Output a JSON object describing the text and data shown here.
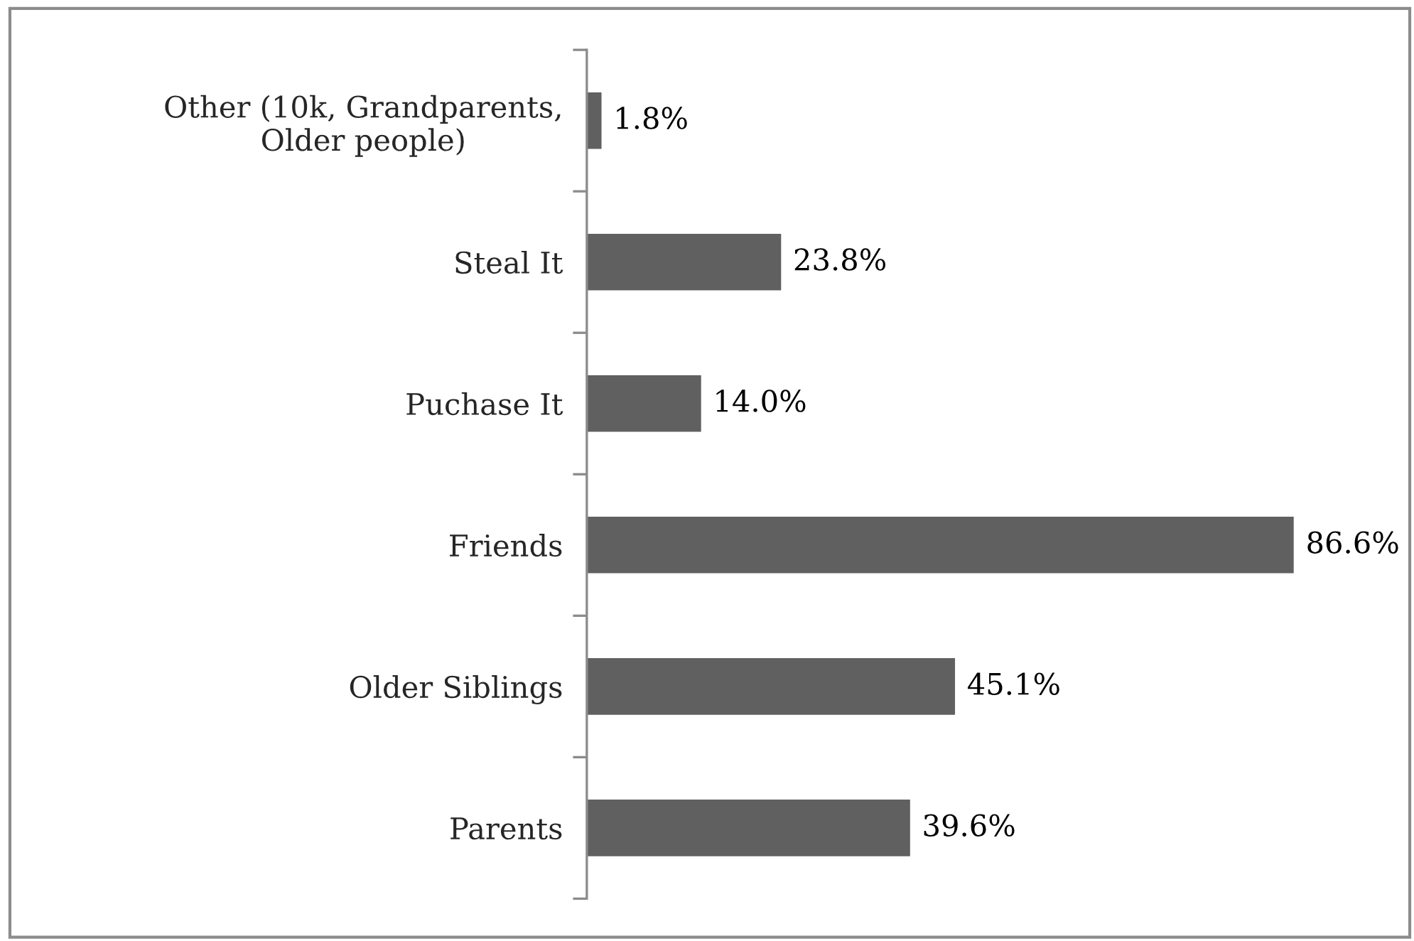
{
  "chart_data": {
    "type": "bar",
    "orientation": "horizontal",
    "categories": [
      "Other (10k, Grandparents,\nOlder people)",
      "Steal It",
      "Puchase It",
      "Friends",
      "Older Siblings",
      "Parents"
    ],
    "values": [
      1.8,
      23.8,
      14.0,
      86.6,
      45.1,
      39.6
    ],
    "color": "#606060",
    "value_labels": [
      "1.8%",
      "23.8%",
      "14.0%",
      "86.6%",
      "45.1%",
      "39.6%"
    ],
    "tick_labels": "y"
  }
}
